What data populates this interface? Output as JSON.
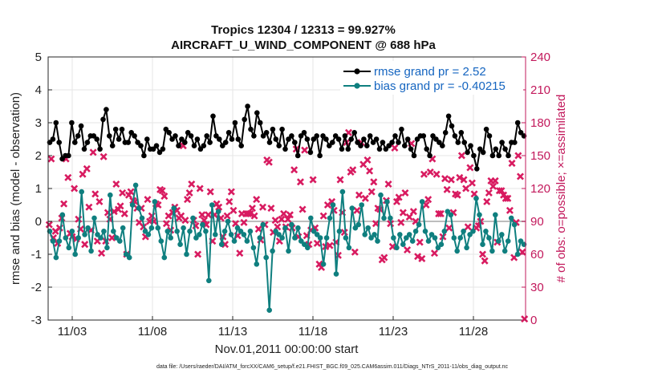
{
  "chart_data": {
    "type": "line",
    "title_line1": "Tropics 12304 / 12313 = 99.927%",
    "title_line2": "AIRCRAFT_U_WIND_COMPONENT @ 688 hPa",
    "ylabel_left": "rmse and bias (model - observation)",
    "ylabel_right": "# of obs: o=possible; ×=assimilated",
    "xlabel": "Nov.01,2011 00:00:00 start",
    "footnote": "data file: /Users/raeder/DAI/ATM_forcXX/CAM6_setup/f.e21.FHIST_BGC.f09_025.CAM6assim.011/Diags_NTrS_2011-11/obs_diag_output.nc",
    "ylim_left": [
      -3,
      5
    ],
    "ylim_right": [
      0,
      240
    ],
    "xlim_days": [
      0.5,
      30.25
    ],
    "yticks_left": [
      "-3",
      "-2",
      "-1",
      "0",
      "1",
      "2",
      "3",
      "4",
      "5"
    ],
    "yticks_right": [
      "0",
      "30",
      "60",
      "90",
      "120",
      "150",
      "180",
      "210",
      "240"
    ],
    "xtick_days": [
      2,
      7,
      12,
      17,
      22,
      27
    ],
    "xtick_labels": [
      "11/03",
      "11/08",
      "11/13",
      "11/18",
      "11/23",
      "11/28"
    ],
    "colors": {
      "rmse": "#000000",
      "bias": "#0f7f7f",
      "obs": "#d81b60",
      "legend_text": "#1565c0",
      "right_axis": "#c2185b",
      "zero_line": "#bdbdbd"
    },
    "series": [
      {
        "name": "rmse grand pr = 2.52",
        "values": [
          2.4,
          2.5,
          3.0,
          2.4,
          1.9,
          2.0,
          2.0,
          3.0,
          2.4,
          2.6,
          2.9,
          2.2,
          2.4,
          2.6,
          2.6,
          2.5,
          2.2,
          3.1,
          3.4,
          2.6,
          2.3,
          2.8,
          2.5,
          2.8,
          2.4,
          2.4,
          2.7,
          2.6,
          2.4,
          2.3,
          2.0,
          2.5,
          2.2,
          2.2,
          2.3,
          2.1,
          2.2,
          2.8,
          2.7,
          2.5,
          2.6,
          2.3,
          2.5,
          2.4,
          2.7,
          2.6,
          2.3,
          2.5,
          2.2,
          2.3,
          2.6,
          2.4,
          3.2,
          2.6,
          2.5,
          2.3,
          2.4,
          2.7,
          2.5,
          3.0,
          2.5,
          2.3,
          3.1,
          3.5,
          2.8,
          2.6,
          3.3,
          3.0,
          2.6,
          2.7,
          2.4,
          2.8,
          2.5,
          2.3,
          2.8,
          2.2,
          2.5,
          2.6,
          2.4,
          2.0,
          2.6,
          2.7,
          2.5,
          2.1,
          2.5,
          2.6,
          2.0,
          2.6,
          2.5,
          2.3,
          2.4,
          2.6,
          2.5,
          2.2,
          2.6,
          2.2,
          2.5,
          2.7,
          2.4,
          2.3,
          2.5,
          2.3,
          2.6,
          2.4,
          2.5,
          2.2,
          2.4,
          2.2,
          2.3,
          2.4,
          2.6,
          2.4,
          2.8,
          2.3,
          2.5,
          2.2,
          2.0,
          2.5,
          2.6,
          2.6,
          2.2,
          2.0,
          2.6,
          2.5,
          2.4,
          2.3,
          2.7,
          3.2,
          2.9,
          2.6,
          2.4,
          2.7,
          2.4,
          2.1,
          2.3,
          2.0,
          1.6,
          2.2,
          2.1,
          2.8,
          2.6,
          2.0,
          2.2,
          2.0,
          2.4,
          2.2,
          2.0,
          2.4,
          2.4,
          3.0,
          2.7,
          2.6
        ]
      },
      {
        "name": "bias grand pr = -0.40215",
        "values": [
          -0.3,
          -0.6,
          -1.1,
          -0.6,
          0.2,
          -0.5,
          -0.8,
          -0.3,
          -1.0,
          -0.5,
          0.9,
          -0.4,
          -0.2,
          -0.9,
          0.1,
          -0.4,
          -0.5,
          -0.3,
          -0.8,
          0.8,
          -0.3,
          -0.5,
          -0.6,
          -0.2,
          -1.0,
          -1.1,
          0.5,
          1.1,
          0.4,
          0.1,
          -0.3,
          -0.4,
          -0.2,
          0.6,
          -0.2,
          -0.6,
          -1.1,
          -0.3,
          -0.5,
          0.4,
          -0.3,
          -0.7,
          -0.2,
          -1.0,
          -0.3,
          0.1,
          -0.5,
          -0.4,
          -0.1,
          -0.3,
          -1.8,
          0.5,
          -0.4,
          0.3,
          -0.7,
          -0.3,
          0.0,
          -0.4,
          -0.6,
          -0.2,
          -0.3,
          -0.4,
          -0.6,
          -0.3,
          -0.8,
          -1.3,
          -0.5,
          -0.1,
          -1.1,
          -2.7,
          -0.9,
          -0.3,
          -0.4,
          -0.5,
          -0.2,
          -0.9,
          -0.1,
          -0.5,
          -0.2,
          -0.6,
          -0.7,
          -0.8,
          0.1,
          -0.3,
          -0.4,
          -0.5,
          -1.3,
          -0.5,
          0.1,
          0.5,
          -1.6,
          -0.3,
          0.9,
          -0.5,
          -0.8,
          0.4,
          -0.2,
          -0.1,
          0.5,
          -0.4,
          -0.2,
          -0.5,
          -0.4,
          -0.6,
          0.8,
          0.1,
          0.6,
          0.1,
          -0.5,
          -0.8,
          -0.4,
          -0.7,
          -0.5,
          -0.4,
          -0.6,
          -0.3,
          -0.1,
          0.6,
          -0.3,
          -0.6,
          -0.4,
          -0.5,
          -0.8,
          -0.7,
          -0.3,
          0.3,
          0.2,
          -0.5,
          -0.9,
          -0.5,
          -0.3,
          -0.8,
          -0.4,
          -0.3,
          0.7,
          0.2,
          -0.7,
          -0.3,
          -0.5,
          -0.9,
          0.2,
          -0.6,
          -0.4,
          -0.9,
          -0.6,
          0.1,
          -0.1,
          -1.0,
          -0.6,
          -0.7
        ]
      }
    ],
    "obs_assimilated": [
      87,
      147,
      75,
      81,
      70,
      84,
      93,
      106,
      147,
      130,
      79,
      76,
      120,
      74,
      92,
      83,
      133,
      69,
      138,
      103,
      82,
      153,
      115,
      72,
      108,
      61,
      149,
      72,
      98,
      92,
      75,
      99,
      124,
      101,
      104,
      116,
      97,
      60,
      114,
      117,
      109,
      108,
      102,
      89,
      102,
      85,
      76,
      110,
      90,
      95,
      90,
      106,
      105,
      119,
      118,
      113,
      88,
      95,
      82,
      98,
      103,
      100,
      93,
      95,
      159,
      91,
      110,
      116,
      124,
      91,
      86,
      60,
      120,
      96,
      91,
      87,
      96,
      117,
      72,
      96,
      106,
      103,
      93,
      76,
      69,
      95,
      108,
      117,
      100,
      88,
      77,
      61,
      97,
      89,
      97,
      97,
      97,
      102,
      95,
      110,
      83,
      73,
      103,
      87,
      146,
      144,
      102,
      80,
      91,
      85,
      72,
      92,
      97,
      85,
      92,
      96,
      84,
      137,
      156,
      76,
      126,
      101,
      155,
      77,
      69,
      82,
      128,
      84,
      70,
      51,
      48,
      95,
      67,
      105,
      68,
      108,
      100,
      71,
      59,
      128,
      98,
      80,
      162,
      171,
      135,
      137,
      62,
      100,
      114,
      162,
      142,
      111,
      146,
      136,
      117,
      126,
      88,
      102,
      101,
      55,
      57,
      109,
      124,
      88,
      67,
      157,
      108,
      112,
      89,
      98,
      116,
      64,
      94,
      161,
      99,
      90,
      58,
      71,
      56,
      133,
      105,
      110,
      135,
      147,
      61,
      133,
      97,
      97,
      76,
      129,
      119,
      84,
      128,
      98,
      115,
      114,
      130,
      150,
      128,
      120,
      85,
      139,
      125,
      115,
      84,
      86,
      90,
      60,
      54,
      108,
      116,
      127,
      122,
      127,
      71,
      118,
      118,
      114,
      111,
      111,
      100,
      143,
      57,
      89,
      150,
      131,
      62,
      1
    ],
    "legend": [
      {
        "label": "rmse grand pr = 2.52",
        "marker": "circle",
        "color": "#000000"
      },
      {
        "label": "bias grand pr = -0.40215",
        "marker": "circle",
        "color": "#0f7f7f"
      }
    ],
    "legend_position": "top-right"
  }
}
